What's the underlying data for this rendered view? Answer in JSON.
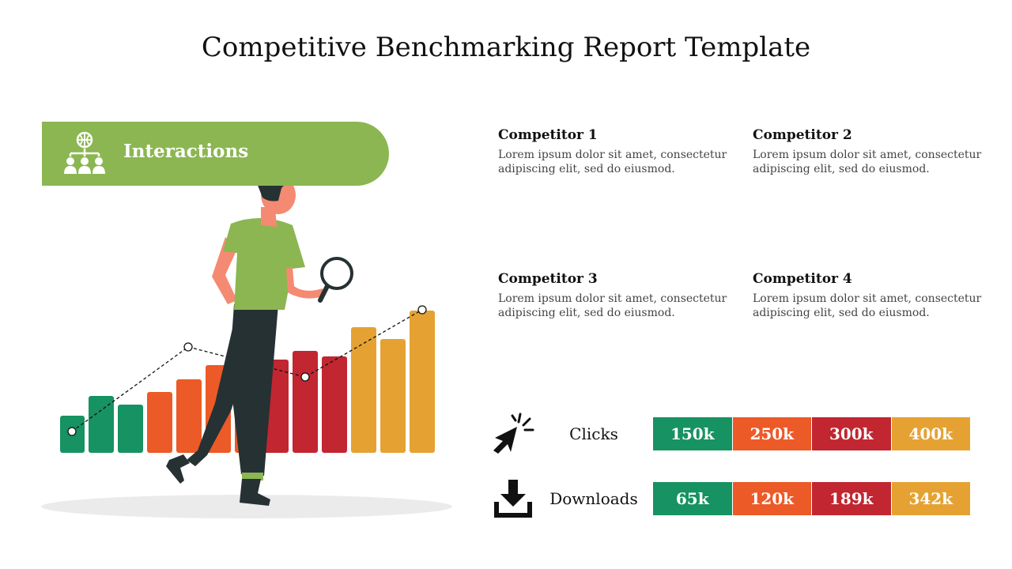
{
  "title": "Competitive Benchmarking Report Template",
  "banner": {
    "label": "Interactions",
    "icon": "network-people-icon"
  },
  "colors": {
    "green": "#179262",
    "orange": "#EC5A28",
    "red": "#C12631",
    "yellow": "#E5A233",
    "banner": "#8BB651"
  },
  "competitors": [
    {
      "title": "Competitor 1",
      "desc_line1": "Lorem ipsum dolor sit amet, consectetur",
      "desc_line2": "adipiscing elit, sed do eiusmod."
    },
    {
      "title": "Competitor 2",
      "desc_line1": "Lorem ipsum dolor sit amet, consectetur",
      "desc_line2": "adipiscing elit, sed do eiusmod."
    },
    {
      "title": "Competitor 3",
      "desc_line1": "Lorem ipsum dolor sit amet, consectetur",
      "desc_line2": "adipiscing elit, sed do eiusmod."
    },
    {
      "title": "Competitor 4",
      "desc_line1": "Lorem ipsum dolor sit amet, consectetur",
      "desc_line2": "adipiscing elit, sed do eiusmod."
    }
  ],
  "metrics": [
    {
      "label": "Clicks",
      "icon": "cursor-click-icon",
      "values": [
        "150k",
        "250k",
        "300k",
        "400k"
      ]
    },
    {
      "label": "Downloads",
      "icon": "download-icon",
      "values": [
        "65k",
        "120k",
        "189k",
        "342k"
      ]
    }
  ]
}
